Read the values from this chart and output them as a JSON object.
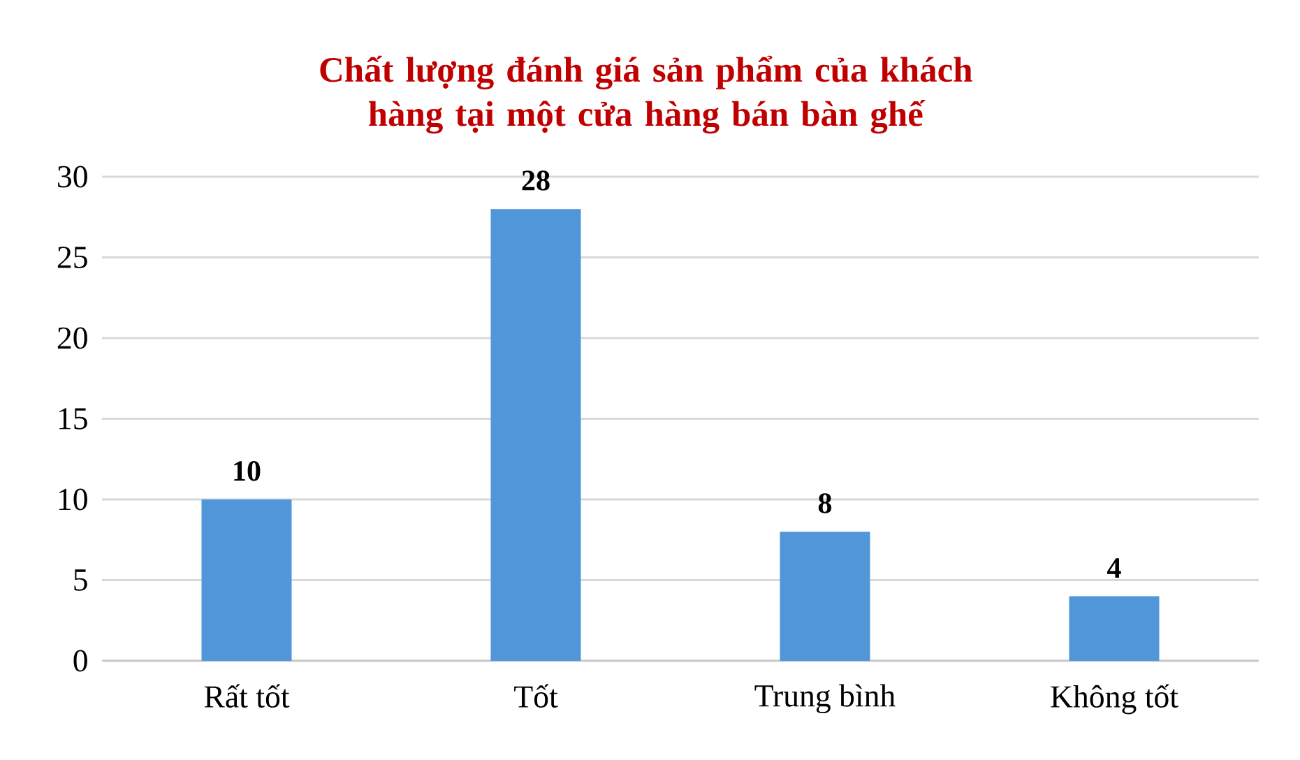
{
  "chart_data": {
    "type": "bar",
    "title": "Chất lượng đánh giá sản phẩm của khách hàng tại một cửa hàng bán bàn ghế",
    "categories": [
      "Rất tốt",
      "Tốt",
      "Trung bình",
      "Không tốt"
    ],
    "values": [
      10,
      28,
      8,
      4
    ],
    "color": "#5096d8",
    "ylim": [
      0,
      30
    ],
    "yticks": [
      0,
      5,
      10,
      15,
      20,
      25,
      30
    ],
    "grid": "y",
    "data_labels": true
  }
}
